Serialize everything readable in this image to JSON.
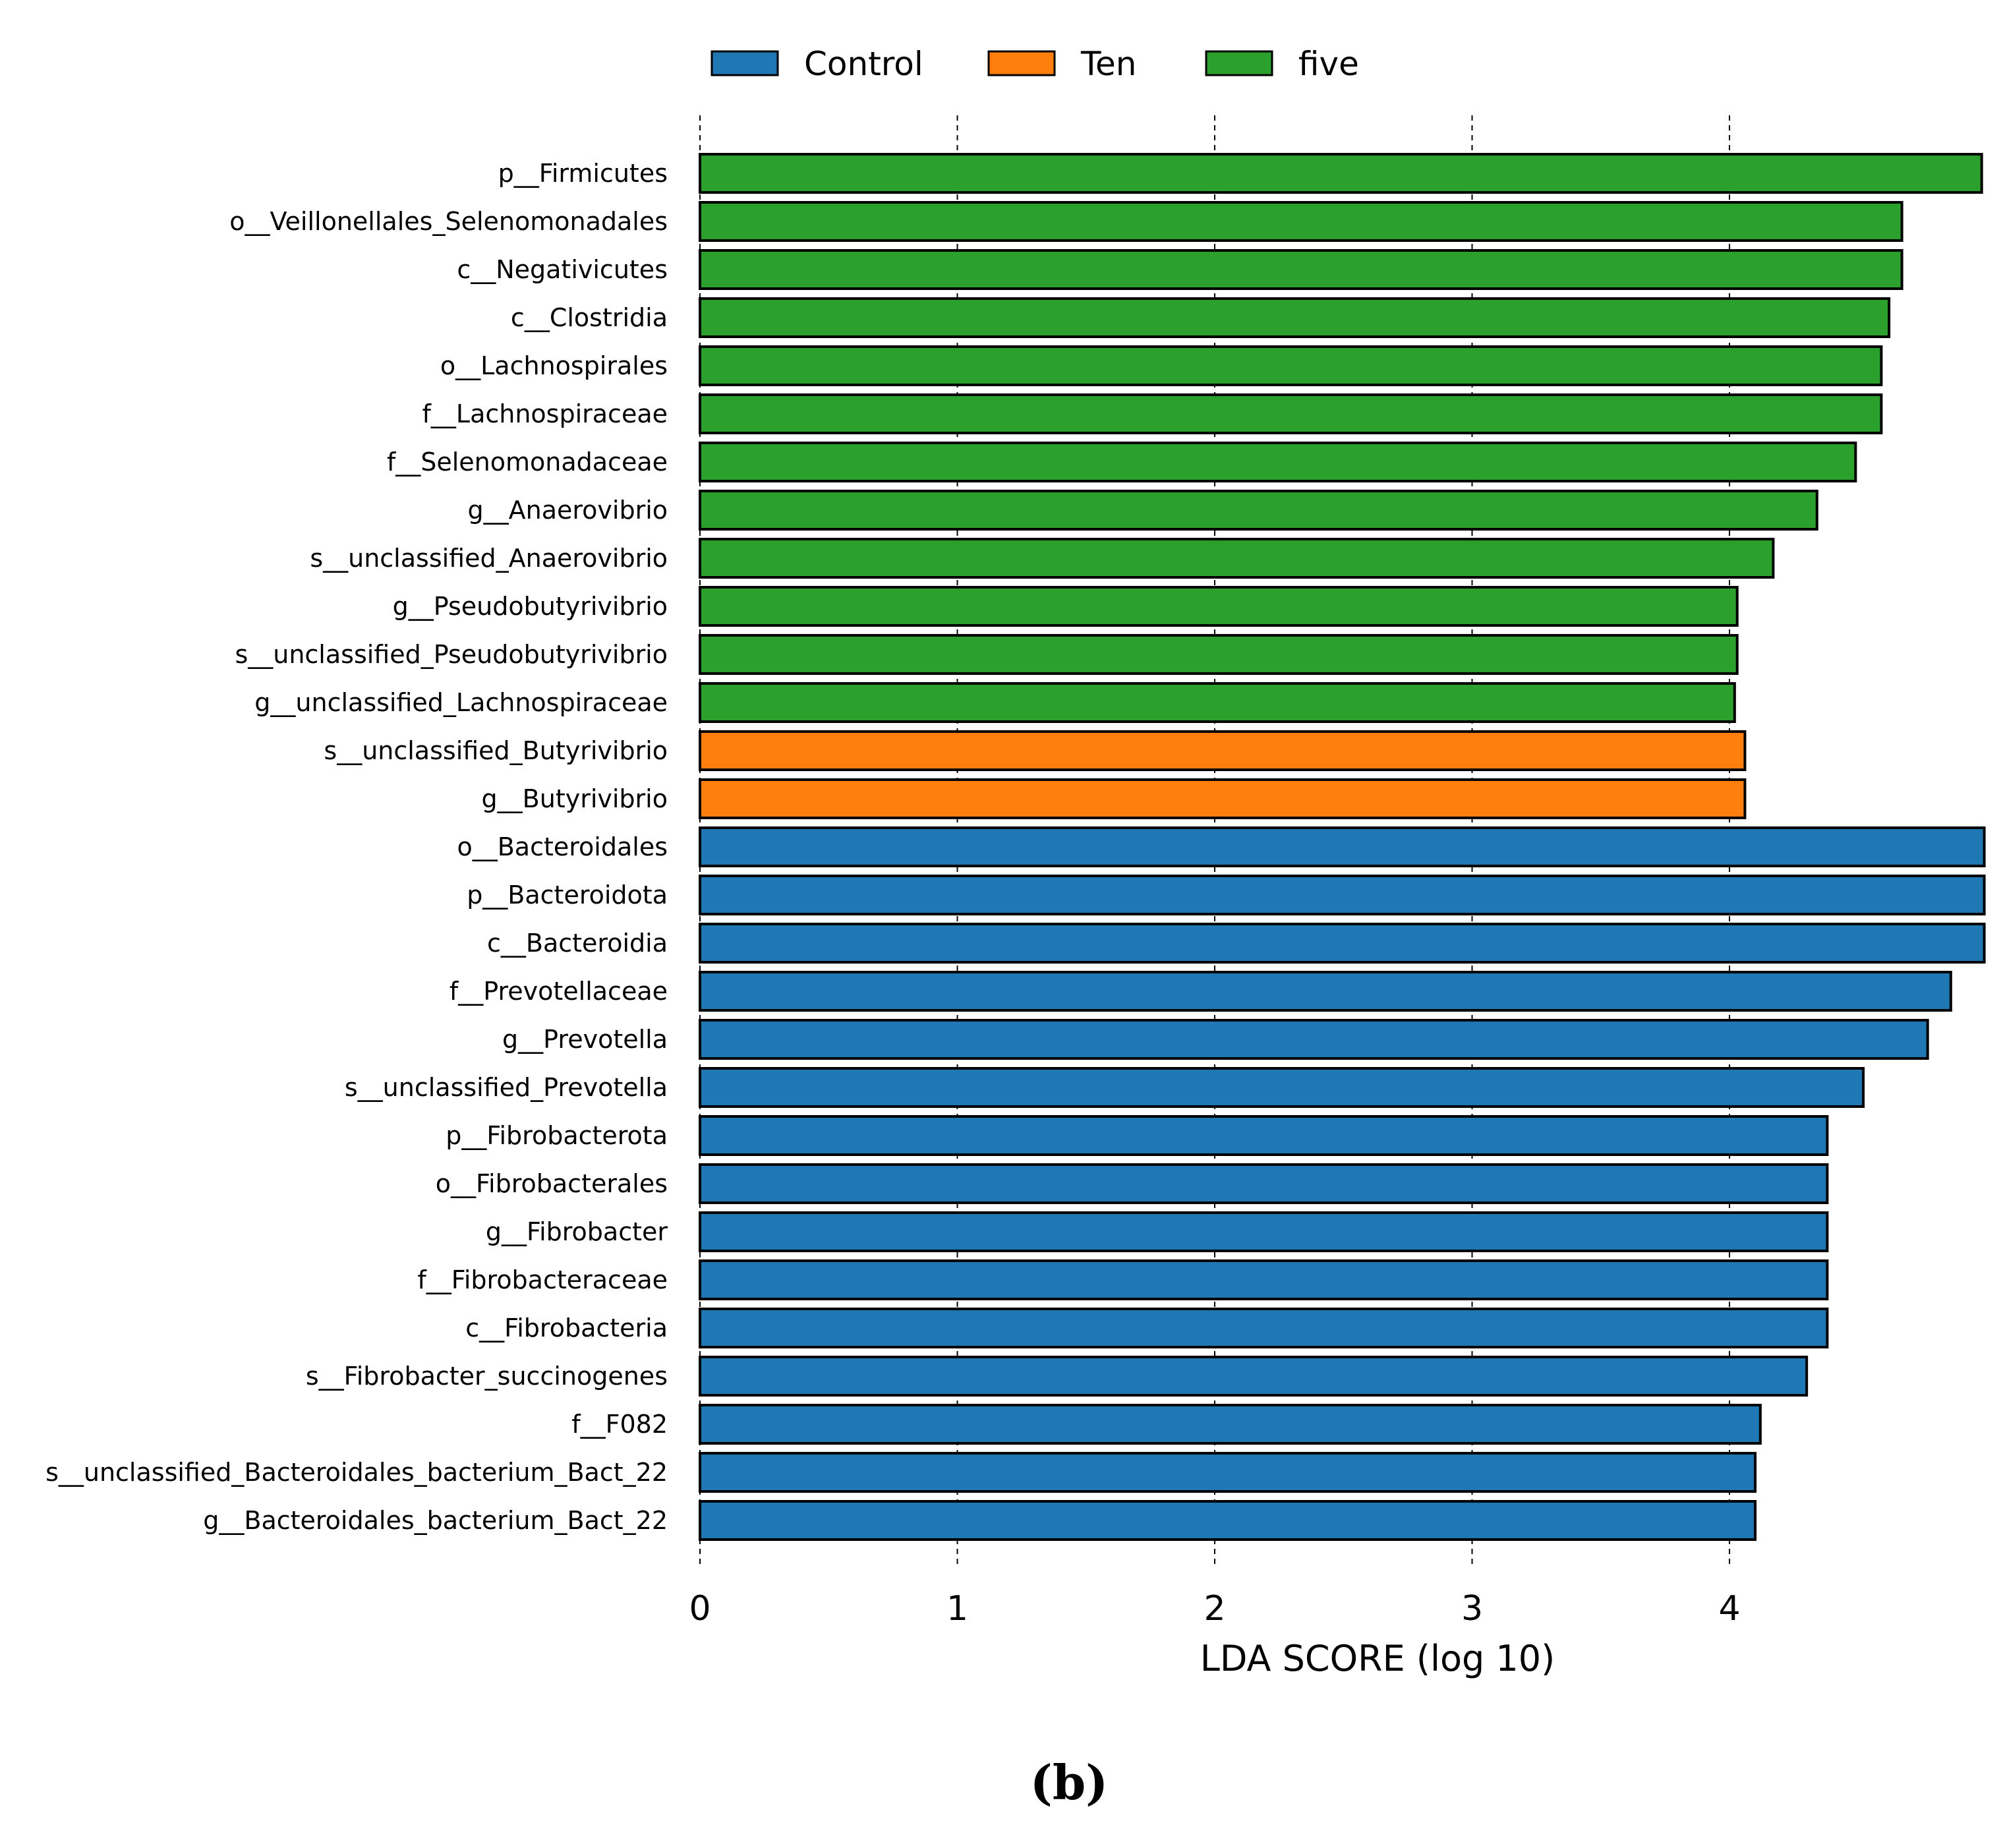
{
  "chart_data": {
    "type": "bar",
    "orientation": "horizontal",
    "title": "",
    "xlabel": "LDA SCORE (log 10)",
    "ylabel": "",
    "xlim": [
      0,
      4.98
    ],
    "x_ticks": [
      "0",
      "1",
      "2",
      "3",
      "4"
    ],
    "grid": "vertical dashed",
    "legend_position": "top",
    "panel_label": "(b)",
    "legend": [
      {
        "name": "Control",
        "color": "#1f77b4"
      },
      {
        "name": "Ten",
        "color": "#ff7f0e"
      },
      {
        "name": "five",
        "color": "#2ca02c"
      }
    ],
    "bars": [
      {
        "label": "p__Firmicutes",
        "value": 4.98,
        "group": "five"
      },
      {
        "label": "o__Veillonellales_Selenomonadales",
        "value": 4.67,
        "group": "five"
      },
      {
        "label": "c__Negativicutes",
        "value": 4.67,
        "group": "five"
      },
      {
        "label": "c__Clostridia",
        "value": 4.62,
        "group": "five"
      },
      {
        "label": "o__Lachnospirales",
        "value": 4.59,
        "group": "five"
      },
      {
        "label": "f__Lachnospiraceae",
        "value": 4.59,
        "group": "five"
      },
      {
        "label": "f__Selenomonadaceae",
        "value": 4.49,
        "group": "five"
      },
      {
        "label": "g__Anaerovibrio",
        "value": 4.34,
        "group": "five"
      },
      {
        "label": "s__unclassified_Anaerovibrio",
        "value": 4.17,
        "group": "five"
      },
      {
        "label": "g__Pseudobutyrivibrio",
        "value": 4.03,
        "group": "five"
      },
      {
        "label": "s__unclassified_Pseudobutyrivibrio",
        "value": 4.03,
        "group": "five"
      },
      {
        "label": "g__unclassified_Lachnospiraceae",
        "value": 4.02,
        "group": "five"
      },
      {
        "label": "s__unclassified_Butyrivibrio",
        "value": 4.06,
        "group": "Ten"
      },
      {
        "label": "g__Butyrivibrio",
        "value": 4.06,
        "group": "Ten"
      },
      {
        "label": "o__Bacteroidales",
        "value": 4.99,
        "group": "Control"
      },
      {
        "label": "p__Bacteroidota",
        "value": 4.99,
        "group": "Control"
      },
      {
        "label": "c__Bacteroidia",
        "value": 4.99,
        "group": "Control"
      },
      {
        "label": "f__Prevotellaceae",
        "value": 4.86,
        "group": "Control"
      },
      {
        "label": "g__Prevotella",
        "value": 4.77,
        "group": "Control"
      },
      {
        "label": "s__unclassified_Prevotella",
        "value": 4.52,
        "group": "Control"
      },
      {
        "label": "p__Fibrobacterota",
        "value": 4.38,
        "group": "Control"
      },
      {
        "label": "o__Fibrobacterales",
        "value": 4.38,
        "group": "Control"
      },
      {
        "label": "g__Fibrobacter",
        "value": 4.38,
        "group": "Control"
      },
      {
        "label": "f__Fibrobacteraceae",
        "value": 4.38,
        "group": "Control"
      },
      {
        "label": "c__Fibrobacteria",
        "value": 4.38,
        "group": "Control"
      },
      {
        "label": "s__Fibrobacter_succinogenes",
        "value": 4.3,
        "group": "Control"
      },
      {
        "label": "f__F082",
        "value": 4.12,
        "group": "Control"
      },
      {
        "label": "s__unclassified_Bacteroidales_bacterium_Bact_22",
        "value": 4.1,
        "group": "Control"
      },
      {
        "label": "g__Bacteroidales_bacterium_Bact_22",
        "value": 4.1,
        "group": "Control"
      }
    ]
  }
}
